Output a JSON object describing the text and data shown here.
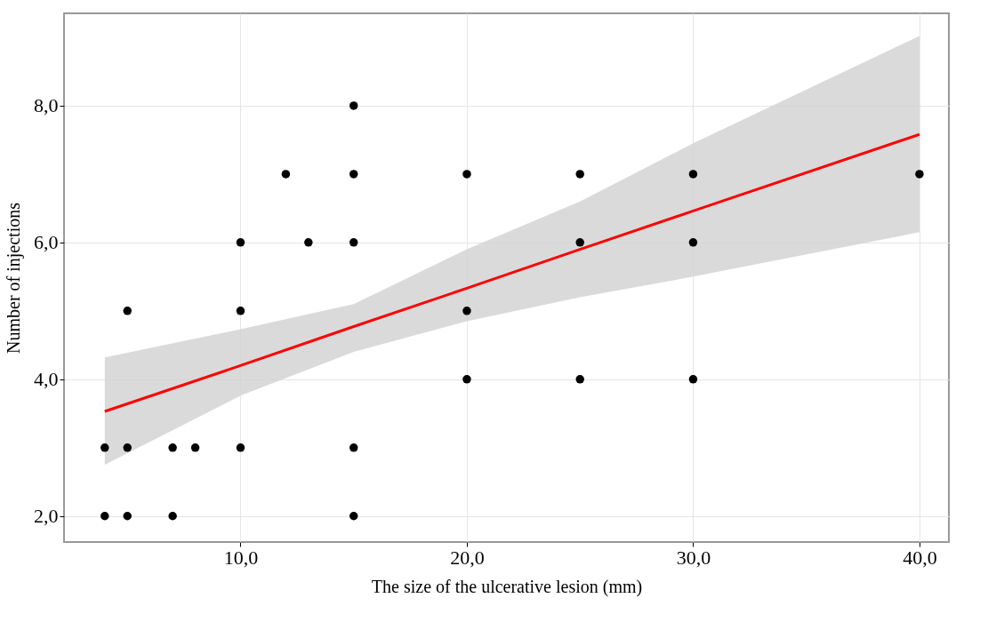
{
  "chart_data": {
    "type": "scatter",
    "xlabel": "The size of the ulcerative lesion (mm)",
    "ylabel": "Number of injections",
    "xlim": [
      2.2,
      41.3
    ],
    "ylim": [
      1.62,
      9.35
    ],
    "xticks": [
      {
        "value": 10,
        "label": "10,0"
      },
      {
        "value": 20,
        "label": "20,0"
      },
      {
        "value": 30,
        "label": "30,0"
      },
      {
        "value": 40,
        "label": "40,0"
      }
    ],
    "yticks": [
      {
        "value": 2,
        "label": "2,0"
      },
      {
        "value": 4,
        "label": "4,0"
      },
      {
        "value": 6,
        "label": "6,0"
      },
      {
        "value": 8,
        "label": "8,0"
      }
    ],
    "grid": true,
    "series": [
      {
        "type": "scatter",
        "color": "#000000",
        "marker": "circle",
        "x": [
          4,
          4,
          5,
          5,
          5,
          7,
          7,
          8,
          10,
          10,
          10,
          12,
          13,
          15,
          15,
          15,
          15,
          15,
          20,
          20,
          20,
          25,
          25,
          25,
          30,
          30,
          30,
          40
        ],
        "values": [
          3,
          2,
          5,
          3,
          2,
          3,
          2,
          3,
          6,
          5,
          3,
          7,
          6,
          8,
          7,
          6,
          3,
          2,
          7,
          5,
          4,
          7,
          6,
          4,
          7,
          6,
          4,
          7
        ]
      },
      {
        "type": "line",
        "color": "#ff0000",
        "x": [
          4,
          10,
          15,
          20,
          25,
          30,
          40
        ],
        "values": [
          3.53,
          4.2,
          4.77,
          5.33,
          5.9,
          6.46,
          7.58
        ],
        "lower": [
          2.75,
          3.76,
          4.4,
          4.85,
          5.2,
          5.5,
          6.15
        ],
        "upper": [
          4.32,
          4.73,
          5.1,
          5.9,
          6.6,
          7.45,
          9.02
        ]
      }
    ]
  }
}
